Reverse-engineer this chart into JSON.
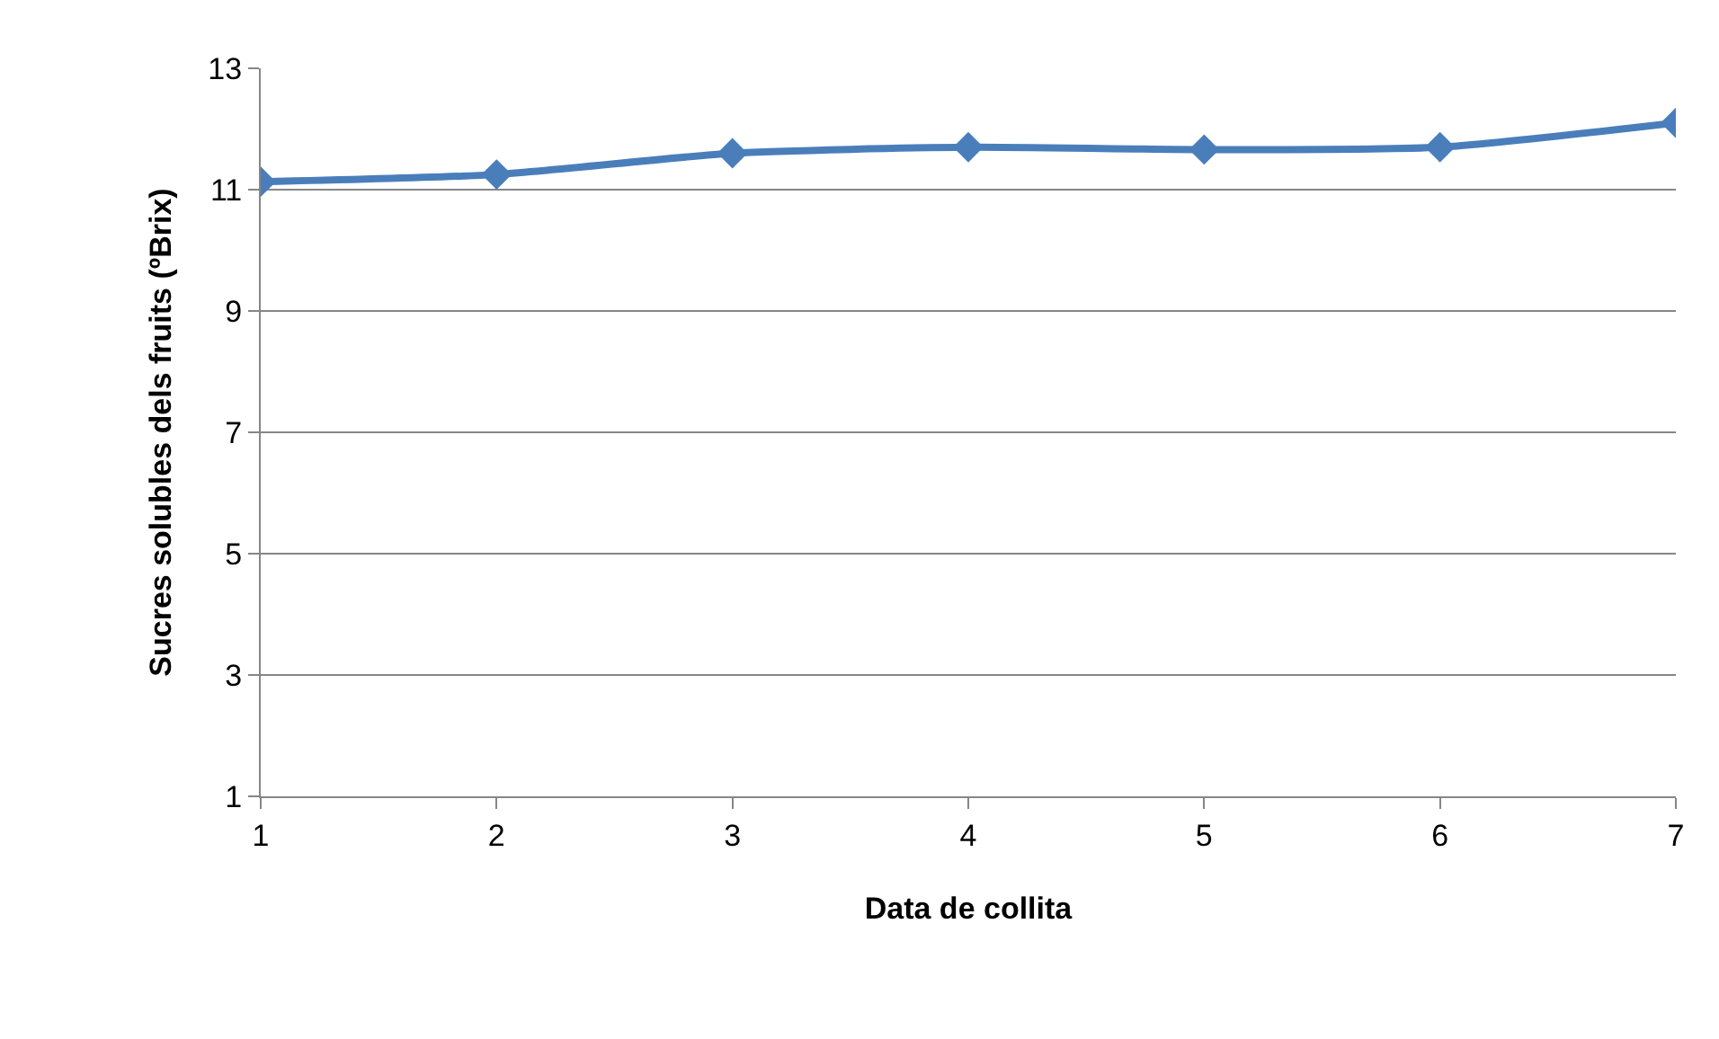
{
  "chart_data": {
    "type": "line",
    "xlabel": "Data de collita",
    "ylabel": "Sucres solubles dels fruits (ºBrix)",
    "x": [
      1,
      2,
      3,
      4,
      5,
      6,
      7
    ],
    "series": [
      {
        "color": "#4a7ebb",
        "values": [
          11.13,
          11.25,
          11.6,
          11.7,
          11.66,
          11.7,
          12.1
        ]
      }
    ],
    "xlim": [
      1,
      7
    ],
    "xticks": [
      1,
      2,
      3,
      4,
      5,
      6,
      7
    ],
    "ylim": [
      1,
      13
    ],
    "yticks": [
      1,
      3,
      5,
      7,
      9,
      11,
      13
    ],
    "grid": "y",
    "marker": "diamond",
    "line_style": "solid"
  }
}
